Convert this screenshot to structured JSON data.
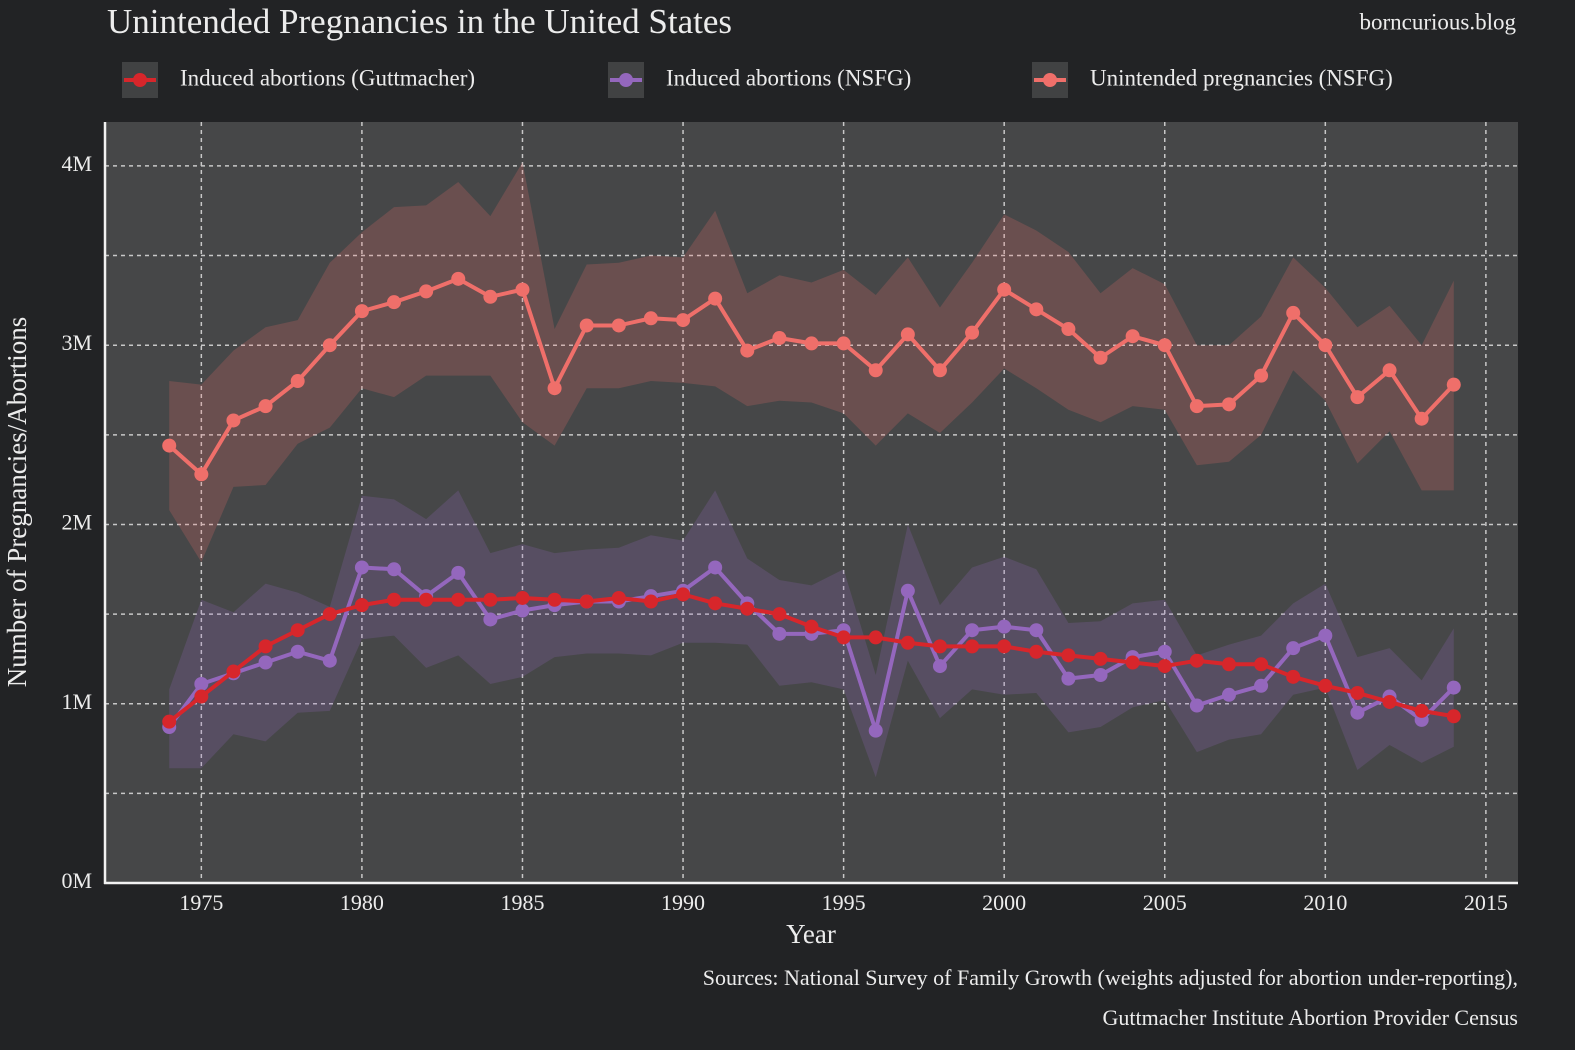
{
  "chart_data": {
    "type": "line",
    "title": "Unintended Pregnancies in the United States",
    "source_site": "borncurious.blog",
    "xlabel": "Year",
    "ylabel": "Number of Pregnancies/Abortions",
    "caption": [
      "Sources: National Survey of Family Growth (weights adjusted for abortion under-reporting),",
      "Guttmacher Institute Abortion Provider Census"
    ],
    "legend_position": "top",
    "grid": true,
    "x": [
      1974,
      1975,
      1976,
      1977,
      1978,
      1979,
      1980,
      1981,
      1982,
      1983,
      1984,
      1985,
      1986,
      1987,
      1988,
      1989,
      1990,
      1991,
      1992,
      1993,
      1994,
      1995,
      1996,
      1997,
      1998,
      1999,
      2000,
      2001,
      2002,
      2003,
      2004,
      2005,
      2006,
      2007,
      2008,
      2009,
      2010,
      2011,
      2012,
      2013,
      2014
    ],
    "xlim": [
      1972,
      2016
    ],
    "xticks": [
      1975,
      1980,
      1985,
      1990,
      1995,
      2000,
      2005,
      2010,
      2015
    ],
    "ylim": [
      0,
      4245000
    ],
    "yticks": [
      {
        "value": 0,
        "label": "0M"
      },
      {
        "value": 1000000,
        "label": "1M"
      },
      {
        "value": 2000000,
        "label": "2M"
      },
      {
        "value": 3000000,
        "label": "3M"
      },
      {
        "value": 4000000,
        "label": "4M"
      }
    ],
    "yticks_minor": [
      500000,
      1500000,
      2500000,
      3500000
    ],
    "series": [
      {
        "name": "Induced abortions (Guttmacher)",
        "color": "#d7262b",
        "values": [
          900000,
          1040000,
          1180000,
          1320000,
          1410000,
          1500000,
          1550000,
          1580000,
          1580000,
          1580000,
          1580000,
          1590000,
          1580000,
          1570000,
          1590000,
          1570000,
          1610000,
          1560000,
          1530000,
          1500000,
          1430000,
          1370000,
          1370000,
          1340000,
          1320000,
          1320000,
          1320000,
          1290000,
          1270000,
          1250000,
          1230000,
          1210000,
          1240000,
          1220000,
          1220000,
          1150000,
          1100000,
          1060000,
          1010000,
          960000,
          930000
        ]
      },
      {
        "name": "Induced abortions (NSFG)",
        "color": "#9467bd",
        "values": [
          870000,
          1110000,
          1170000,
          1230000,
          1290000,
          1240000,
          1760000,
          1750000,
          1600000,
          1730000,
          1470000,
          1520000,
          1550000,
          1570000,
          1570000,
          1600000,
          1630000,
          1760000,
          1560000,
          1390000,
          1390000,
          1410000,
          850000,
          1630000,
          1210000,
          1410000,
          1430000,
          1410000,
          1140000,
          1160000,
          1260000,
          1290000,
          990000,
          1050000,
          1100000,
          1310000,
          1380000,
          950000,
          1040000,
          910000,
          1090000
        ],
        "upper": [
          1080000,
          1580000,
          1510000,
          1670000,
          1620000,
          1540000,
          2160000,
          2140000,
          2030000,
          2190000,
          1840000,
          1890000,
          1840000,
          1860000,
          1870000,
          1940000,
          1910000,
          2190000,
          1810000,
          1690000,
          1660000,
          1750000,
          1160000,
          2000000,
          1550000,
          1760000,
          1820000,
          1750000,
          1450000,
          1460000,
          1560000,
          1580000,
          1270000,
          1330000,
          1380000,
          1560000,
          1670000,
          1260000,
          1310000,
          1130000,
          1420000
        ],
        "lower": [
          640000,
          640000,
          830000,
          790000,
          950000,
          960000,
          1360000,
          1380000,
          1200000,
          1270000,
          1110000,
          1150000,
          1260000,
          1280000,
          1280000,
          1270000,
          1340000,
          1340000,
          1330000,
          1100000,
          1120000,
          1080000,
          590000,
          1240000,
          920000,
          1080000,
          1050000,
          1060000,
          840000,
          870000,
          980000,
          1020000,
          730000,
          800000,
          830000,
          1050000,
          1090000,
          630000,
          770000,
          670000,
          760000
        ]
      },
      {
        "name": "Unintended pregnancies (NSFG)",
        "color": "#ef6f6a",
        "values": [
          2440000,
          2280000,
          2580000,
          2660000,
          2800000,
          3000000,
          3190000,
          3240000,
          3300000,
          3370000,
          3270000,
          3310000,
          2760000,
          3110000,
          3110000,
          3150000,
          3140000,
          3260000,
          2970000,
          3040000,
          3010000,
          3010000,
          2860000,
          3060000,
          2860000,
          3070000,
          3310000,
          3200000,
          3090000,
          2930000,
          3050000,
          3000000,
          2660000,
          2670000,
          2830000,
          3180000,
          3000000,
          2710000,
          2860000,
          2590000,
          2780000
        ],
        "upper": [
          2800000,
          2780000,
          2970000,
          3100000,
          3140000,
          3460000,
          3630000,
          3770000,
          3780000,
          3910000,
          3720000,
          4020000,
          3090000,
          3450000,
          3460000,
          3500000,
          3490000,
          3750000,
          3290000,
          3390000,
          3350000,
          3420000,
          3280000,
          3490000,
          3210000,
          3460000,
          3730000,
          3640000,
          3520000,
          3290000,
          3430000,
          3340000,
          3000000,
          3000000,
          3160000,
          3490000,
          3320000,
          3100000,
          3220000,
          3000000,
          3360000
        ],
        "lower": [
          2080000,
          1790000,
          2210000,
          2220000,
          2450000,
          2540000,
          2760000,
          2710000,
          2830000,
          2830000,
          2830000,
          2570000,
          2440000,
          2760000,
          2760000,
          2800000,
          2790000,
          2770000,
          2660000,
          2690000,
          2680000,
          2620000,
          2440000,
          2620000,
          2510000,
          2680000,
          2870000,
          2760000,
          2640000,
          2570000,
          2660000,
          2640000,
          2330000,
          2350000,
          2500000,
          2860000,
          2690000,
          2340000,
          2520000,
          2190000,
          2190000
        ]
      }
    ]
  }
}
